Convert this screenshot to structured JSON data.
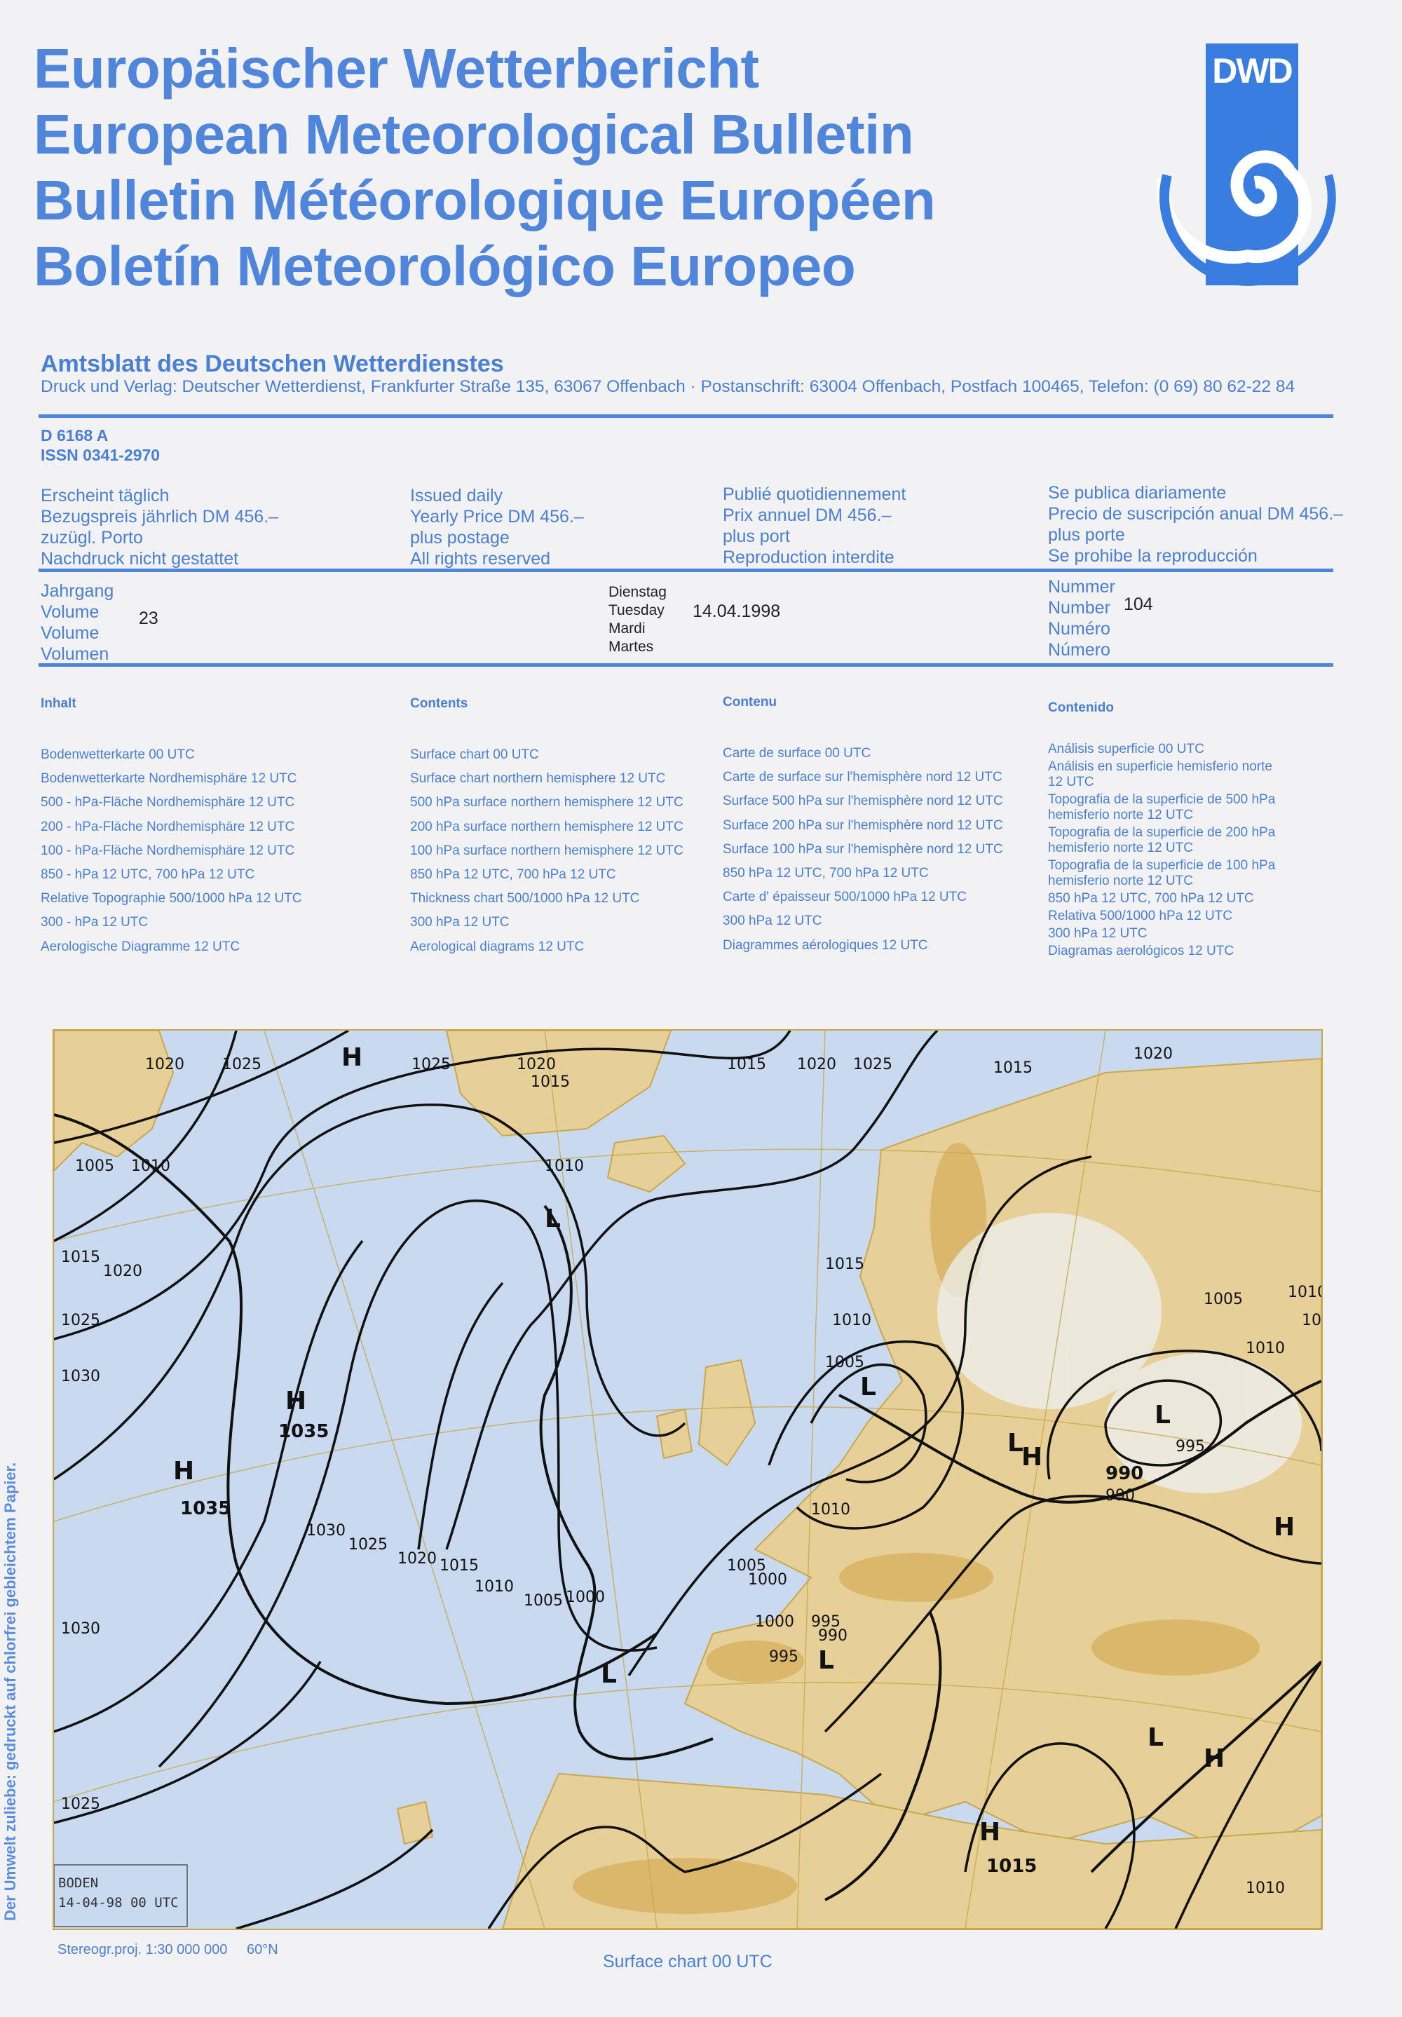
{
  "titles": [
    "Europäischer Wetterbericht",
    "European Meteorological Bulletin",
    "Bulletin Météorologique Européen",
    "Boletín Meteorológico Europeo"
  ],
  "logo": {
    "text": "DWD",
    "color": "#3a7de0"
  },
  "publisher": {
    "name": "Amtsblatt des Deutschen Wetterdienstes",
    "address": "Druck und Verlag: Deutscher Wetterdienst, Frankfurter Straße 135, 63067 Offenbach · Postanschrift: 63004 Offenbach, Postfach 100465, Telefon: (0 69) 80 62-22 84"
  },
  "ids": {
    "d": "D 6168 A",
    "issn": "ISSN 0341-2970"
  },
  "info": {
    "de": [
      "Erscheint täglich",
      "Bezugspreis jährlich DM 456.–",
      "zuzügl. Porto",
      "Nachdruck nicht gestattet"
    ],
    "en": [
      "Issued daily",
      "Yearly Price DM 456.–",
      "plus postage",
      "All rights reserved"
    ],
    "fr": [
      "Publié quotidiennement",
      "Prix annuel DM 456.–",
      "plus port",
      "Reproduction interdite"
    ],
    "es": [
      "Se publica diariamente",
      "Precio de suscripción anual DM 456.–",
      "plus porte",
      "Se prohibe la reproducción"
    ]
  },
  "issue": {
    "volume_labels": [
      "Jahrgang",
      "Volume",
      "Volume",
      "Volumen"
    ],
    "volume": "23",
    "day_labels": [
      "Dienstag",
      "Tuesday",
      "Mardi",
      "Martes"
    ],
    "date": "14.04.1998",
    "number_labels": [
      "Nummer",
      "Number",
      "Numéro",
      "Número"
    ],
    "number": "104"
  },
  "contents": {
    "de": {
      "title": "Inhalt",
      "items": [
        "Bodenwetterkarte 00 UTC",
        "Bodenwetterkarte Nordhemisphäre 12 UTC",
        "500 - hPa-Fläche Nordhemisphäre 12 UTC",
        "200 - hPa-Fläche Nordhemisphäre 12 UTC",
        "100 - hPa-Fläche Nordhemisphäre 12 UTC",
        "850 - hPa 12 UTC, 700 hPa 12 UTC",
        "Relative Topographie 500/1000 hPa 12 UTC",
        "300 - hPa 12 UTC",
        "Aerologische Diagramme 12 UTC"
      ]
    },
    "en": {
      "title": "Contents",
      "items": [
        "Surface chart 00 UTC",
        "Surface chart northern hemisphere 12 UTC",
        "500 hPa surface northern hemisphere 12 UTC",
        "200 hPa surface northern hemisphere 12 UTC",
        "100 hPa surface northern hemisphere 12 UTC",
        "850 hPa 12 UTC, 700 hPa 12 UTC",
        "Thickness chart 500/1000 hPa 12 UTC",
        "300 hPa 12 UTC",
        "Aerological diagrams 12 UTC"
      ]
    },
    "fr": {
      "title": "Contenu",
      "items": [
        "Carte de surface 00 UTC",
        "Carte de surface sur l'hemisphère nord 12 UTC",
        "Surface 500 hPa sur l'hemisphère nord 12 UTC",
        "Surface 200 hPa sur l'hemisphère nord 12 UTC",
        "Surface 100 hPa sur l'hemisphère nord 12 UTC",
        "850 hPa 12 UTC, 700 hPa 12 UTC",
        "Carte d' épaisseur 500/1000 hPa 12 UTC",
        "300 hPa 12 UTC",
        "Diagrammes aérologiques 12 UTC"
      ]
    },
    "es": {
      "title": "Contenido",
      "items": [
        "Análisis superficie 00 UTC",
        "Análisis en superficie hemisferio norte 12 UTC",
        "Topografia de la superficie de 500 hPa hemisferio norte 12 UTC",
        "Topografia de la superficie de 200 hPa hemisferio norte 12 UTC",
        "Topografia de la superficie de 100 hPa hemisferio norte 12 UTC",
        "850 hPa 12 UTC, 700 hPa 12 UTC",
        "Relativa 500/1000 hPa 12 UTC",
        "300 hPa 12 UTC",
        "Diagramas aerológicos 12 UTC"
      ]
    }
  },
  "map": {
    "stamp": [
      "BODEN",
      "14-04-98 00 UTC"
    ],
    "projection": "Stereogr.proj. 1:30 000 000",
    "latitude": "60°N",
    "caption": "Surface chart 00 UTC",
    "sea_color": "#c9d9f0",
    "land_color": "#e7cf98",
    "highland_color": "#d8b060",
    "centers": [
      "H",
      "H",
      "H",
      "H",
      "L",
      "L",
      "L",
      "L",
      "L",
      "L",
      "L",
      "H",
      "H",
      "H"
    ],
    "center_values": [
      "1035",
      "1035",
      "990",
      "1015"
    ],
    "isobar_labels": [
      "1020",
      "1025",
      "1025",
      "1020",
      "1015",
      "1015",
      "1020",
      "1025",
      "1010",
      "1005",
      "1010",
      "1015",
      "1020",
      "1025",
      "1030",
      "1030",
      "1025",
      "1030",
      "1025",
      "1020",
      "1015",
      "1010",
      "1005",
      "1000",
      "1005",
      "1000",
      "995",
      "990",
      "995",
      "1010",
      "1015",
      "1010",
      "1005",
      "1000",
      "990",
      "995",
      "1005",
      "1010",
      "1015",
      "1010",
      "1020",
      "1015",
      "1010"
    ]
  },
  "side_note": "Der Umwelt zuliebe: gedruckt auf chlorfrei gebleichtem Papier."
}
